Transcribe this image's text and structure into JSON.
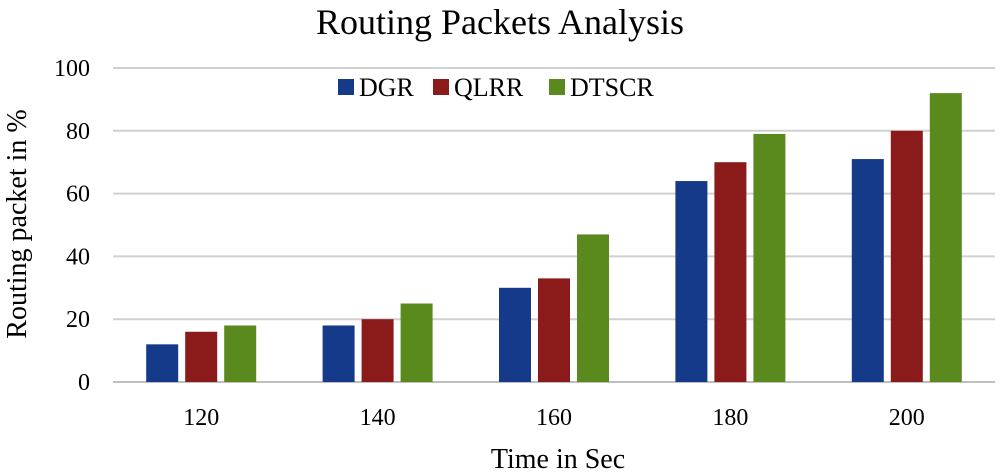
{
  "chart_data": {
    "type": "bar",
    "title": "Routing Packets Analysis",
    "xlabel": "Time in Sec",
    "ylabel": "Routing packet in %",
    "categories": [
      "120",
      "140",
      "160",
      "180",
      "200"
    ],
    "ylim": [
      0,
      100
    ],
    "yticks": [
      0,
      20,
      40,
      60,
      80,
      100
    ],
    "grid": true,
    "legend_position": "top-center",
    "series": [
      {
        "name": "DGR",
        "color": "#163a8a",
        "values": [
          12,
          18,
          30,
          64,
          71
        ]
      },
      {
        "name": "QLRR",
        "color": "#8b1a1a",
        "values": [
          16,
          20,
          33,
          70,
          80
        ]
      },
      {
        "name": "DTSCR",
        "color": "#5a8a1e",
        "values": [
          18,
          25,
          47,
          79,
          92
        ]
      }
    ]
  }
}
